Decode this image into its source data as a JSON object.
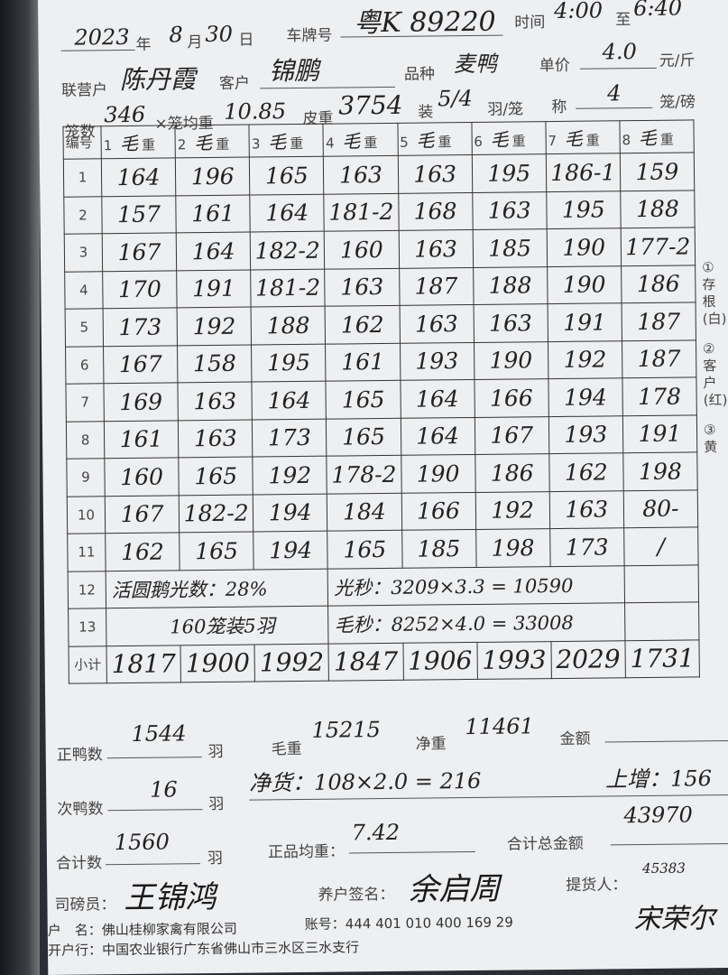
{
  "header": {
    "year": "2023",
    "year_label": "年",
    "month": "8",
    "month_label": "月",
    "day": "30",
    "day_label": "日",
    "plate_label": "车牌号",
    "plate": "粤K 89220",
    "time_label": "时间",
    "time_from": "4:00",
    "time_to_label": "至",
    "time_to": "6:40",
    "partner_label": "联营户",
    "partner": "陈丹霞",
    "customer_label": "客户",
    "customer": "锦鹏",
    "variety_label": "品种",
    "variety": "麦鸭",
    "price_label": "单价",
    "price": "4.0",
    "price_unit": "元/斤",
    "cages_label": "笼数",
    "cages": "346",
    "cage_avg_label": "×笼均重",
    "cage_avg": "10.85",
    "tare_label": "皮重",
    "tare": "3754",
    "load_label": "装",
    "load": "5/4",
    "load_unit": "羽/笼",
    "scale_label": "称",
    "scale": "4",
    "scale_unit": "笼/磅"
  },
  "table": {
    "no_label": "编号",
    "columns": [
      {
        "n": "1",
        "mark": "毛",
        "label": "重"
      },
      {
        "n": "2",
        "mark": "毛",
        "label": "重"
      },
      {
        "n": "3",
        "mark": "毛",
        "label": "重"
      },
      {
        "n": "4",
        "mark": "毛",
        "label": "重"
      },
      {
        "n": "5",
        "mark": "毛",
        "label": "重"
      },
      {
        "n": "6",
        "mark": "毛",
        "label": "重"
      },
      {
        "n": "7",
        "mark": "毛",
        "label": "重"
      },
      {
        "n": "8",
        "mark": "毛",
        "label": "重"
      }
    ],
    "rows": [
      {
        "no": "1",
        "v": [
          "164",
          "196",
          "165",
          "163",
          "163",
          "195",
          "186-1",
          "159"
        ]
      },
      {
        "no": "2",
        "v": [
          "157",
          "161",
          "164",
          "181-2",
          "168",
          "163",
          "195",
          "188"
        ]
      },
      {
        "no": "3",
        "v": [
          "167",
          "164",
          "182-2",
          "160",
          "163",
          "185",
          "190",
          "177-2"
        ]
      },
      {
        "no": "4",
        "v": [
          "170",
          "191",
          "181-2",
          "163",
          "187",
          "188",
          "190",
          "186"
        ]
      },
      {
        "no": "5",
        "v": [
          "173",
          "192",
          "188",
          "162",
          "163",
          "163",
          "191",
          "187"
        ]
      },
      {
        "no": "6",
        "v": [
          "167",
          "158",
          "195",
          "161",
          "193",
          "190",
          "192",
          "187"
        ]
      },
      {
        "no": "7",
        "v": [
          "169",
          "163",
          "164",
          "165",
          "164",
          "166",
          "194",
          "178"
        ]
      },
      {
        "no": "8",
        "v": [
          "161",
          "163",
          "173",
          "165",
          "164",
          "167",
          "193",
          "191"
        ]
      },
      {
        "no": "9",
        "v": [
          "160",
          "165",
          "192",
          "178-2",
          "190",
          "186",
          "162",
          "198"
        ]
      },
      {
        "no": "10",
        "v": [
          "167",
          "182-2",
          "194",
          "184",
          "166",
          "192",
          "163",
          "80-"
        ]
      },
      {
        "no": "11",
        "v": [
          "162",
          "165",
          "194",
          "165",
          "185",
          "198",
          "173",
          "/"
        ]
      }
    ],
    "row12": {
      "no": "12",
      "left": "活圆鹅光数：28%",
      "right": "光秒：3209×3.3 = 10590"
    },
    "row13": {
      "no": "13",
      "left": "160笼装5羽",
      "right": "毛秒：8252×4.0 = 33008"
    },
    "subtotal": {
      "label": "小计",
      "v": [
        "1817",
        "1900",
        "1992",
        "1847",
        "1906",
        "1993",
        "2029",
        "1731"
      ]
    }
  },
  "side_note": [
    "①存根(白)",
    "②客户(红)",
    "③黄"
  ],
  "summary": {
    "good_label": "正鸭数",
    "good": "1544",
    "unit": "羽",
    "gross_label": "毛重",
    "gross": "15215",
    "net_label": "净重",
    "net": "11461",
    "amount_label": "金额",
    "amount": "",
    "second_label": "次鸭数",
    "second": "16",
    "second_note": "净货：108×2.0 = 216",
    "extra_note": "上增：156",
    "total_label": "合计数",
    "total": "1560",
    "avg_label": "正品均重：",
    "avg": "7.42",
    "total_amount_label": "合计总金额",
    "total_amount": "43970",
    "total_amount_note": "45383"
  },
  "signatures": {
    "weigher_label": "司磅员：",
    "weigher": "王锦鸿",
    "farmer_label": "养户签名：",
    "farmer": "余启周",
    "picker_label": "提货人：",
    "picker": "宋荣尔"
  },
  "footer": {
    "account_name_label": "户　名：",
    "account_name": "佛山桂柳家禽有限公司",
    "account_no_label": "账号：",
    "account_no": "444 401 010 400 169 29",
    "bank_label": "开户行：",
    "bank": "中国农业银行广东省佛山市三水区三水支行"
  }
}
